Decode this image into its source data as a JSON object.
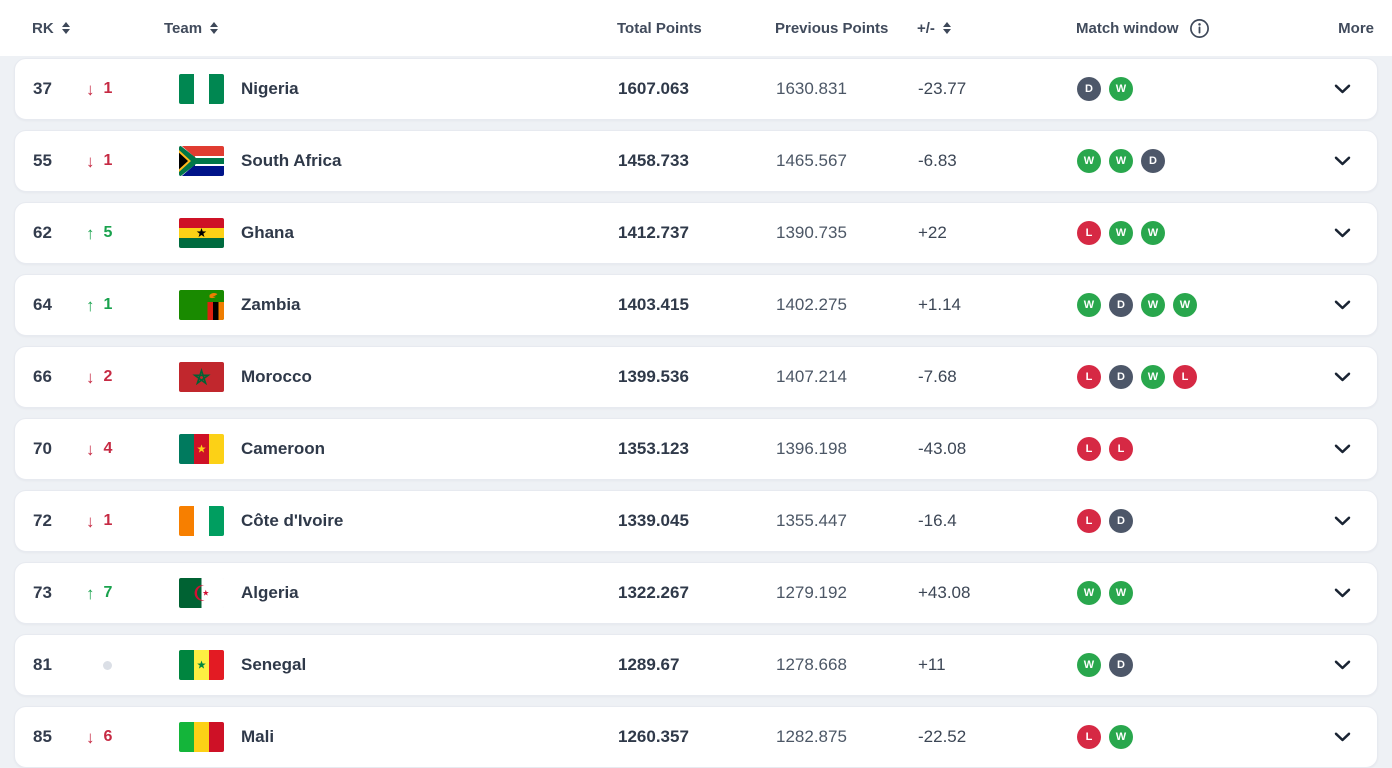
{
  "header": {
    "rk": "RK",
    "team": "Team",
    "total_points": "Total Points",
    "previous_points": "Previous Points",
    "plus_minus": "+/-",
    "match_window": "Match window",
    "more": "More"
  },
  "colors": {
    "win": "#29A74D",
    "draw": "#4D5769",
    "loss": "#D62944",
    "rank_up": "#19A24D",
    "rank_down": "#C62A43",
    "no_change_dot": "#DBDFE6"
  },
  "rows": [
    {
      "rank": "37",
      "change": {
        "direction": "down",
        "value": "1"
      },
      "flag_icon": "flag-nigeria",
      "team": "Nigeria",
      "total_points": "1607.063",
      "previous_points": "1630.831",
      "plus_minus": "-23.77",
      "match_window": [
        "D",
        "W"
      ]
    },
    {
      "rank": "55",
      "change": {
        "direction": "down",
        "value": "1"
      },
      "flag_icon": "flag-south-africa",
      "team": "South Africa",
      "total_points": "1458.733",
      "previous_points": "1465.567",
      "plus_minus": "-6.83",
      "match_window": [
        "W",
        "W",
        "D"
      ]
    },
    {
      "rank": "62",
      "change": {
        "direction": "up",
        "value": "5"
      },
      "flag_icon": "flag-ghana",
      "team": "Ghana",
      "total_points": "1412.737",
      "previous_points": "1390.735",
      "plus_minus": "+22",
      "match_window": [
        "L",
        "W",
        "W"
      ]
    },
    {
      "rank": "64",
      "change": {
        "direction": "up",
        "value": "1"
      },
      "flag_icon": "flag-zambia",
      "team": "Zambia",
      "total_points": "1403.415",
      "previous_points": "1402.275",
      "plus_minus": "+1.14",
      "match_window": [
        "W",
        "D",
        "W",
        "W"
      ]
    },
    {
      "rank": "66",
      "change": {
        "direction": "down",
        "value": "2"
      },
      "flag_icon": "flag-morocco",
      "team": "Morocco",
      "total_points": "1399.536",
      "previous_points": "1407.214",
      "plus_minus": "-7.68",
      "match_window": [
        "L",
        "D",
        "W",
        "L"
      ]
    },
    {
      "rank": "70",
      "change": {
        "direction": "down",
        "value": "4"
      },
      "flag_icon": "flag-cameroon",
      "team": "Cameroon",
      "total_points": "1353.123",
      "previous_points": "1396.198",
      "plus_minus": "-43.08",
      "match_window": [
        "L",
        "L"
      ]
    },
    {
      "rank": "72",
      "change": {
        "direction": "down",
        "value": "1"
      },
      "flag_icon": "flag-cote-divoire",
      "team": "Côte d'Ivoire",
      "total_points": "1339.045",
      "previous_points": "1355.447",
      "plus_minus": "-16.4",
      "match_window": [
        "L",
        "D"
      ]
    },
    {
      "rank": "73",
      "change": {
        "direction": "up",
        "value": "7"
      },
      "flag_icon": "flag-algeria",
      "team": "Algeria",
      "total_points": "1322.267",
      "previous_points": "1279.192",
      "plus_minus": "+43.08",
      "match_window": [
        "W",
        "W"
      ]
    },
    {
      "rank": "81",
      "change": {
        "direction": "none",
        "value": ""
      },
      "flag_icon": "flag-senegal",
      "team": "Senegal",
      "total_points": "1289.67",
      "previous_points": "1278.668",
      "plus_minus": "+11",
      "match_window": [
        "W",
        "D"
      ]
    },
    {
      "rank": "85",
      "change": {
        "direction": "down",
        "value": "6"
      },
      "flag_icon": "flag-mali",
      "team": "Mali",
      "total_points": "1260.357",
      "previous_points": "1282.875",
      "plus_minus": "-22.52",
      "match_window": [
        "L",
        "W"
      ]
    }
  ]
}
